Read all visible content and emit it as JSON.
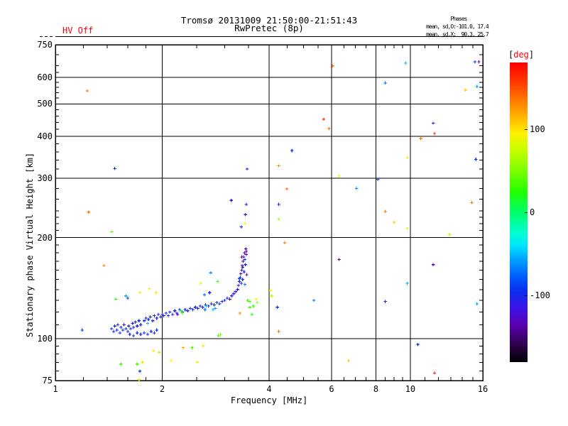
{
  "header": {
    "hv_status": "HV Off",
    "hv_color": "#ff0000",
    "title": "Tromsø 20131009 21:50:00-21:51:43",
    "subtitle": "RwPretec (8p)",
    "phases_label": "Phases",
    "phases_mean_o": "mean, sd,O:-101.0, 17.4",
    "phases_mean_x": "mean, sd,X:  90.3, 25.7"
  },
  "chart_data": {
    "type": "scatter",
    "title": "Tromsø 20131009 21:50:00-21:51:43",
    "subtitle": "RwPretec (8p)",
    "xlabel": "Frequency [MHz]",
    "ylabel": "Stationary phase Virtual Height [km]",
    "x_scale": "log",
    "y_scale": "log",
    "xlim": [
      1,
      16
    ],
    "ylim": [
      75,
      750
    ],
    "grid": true,
    "x_major_ticks": [
      1,
      2,
      4,
      6,
      8,
      10,
      16
    ],
    "x_minor_ticks": [
      1.2,
      1.4,
      1.6,
      1.8,
      2.5,
      3,
      3.5,
      4.5,
      5,
      5.5,
      6.5,
      7,
      7.5,
      8.5,
      9,
      9.5,
      11,
      12,
      13,
      14,
      15
    ],
    "y_major_ticks": [
      75,
      100,
      200,
      300,
      400,
      500,
      600,
      750
    ],
    "y_minor_ticks": [
      80,
      85,
      90,
      95,
      110,
      120,
      130,
      140,
      150,
      160,
      170,
      180,
      190,
      210,
      220,
      230,
      240,
      260,
      280,
      320,
      340,
      360,
      380,
      420,
      440,
      460,
      480,
      520,
      540,
      560,
      580,
      620,
      650,
      700
    ],
    "x_gridlines": [
      2,
      4,
      6,
      8,
      10
    ],
    "y_gridlines": [
      100,
      200,
      300,
      400,
      500,
      600
    ],
    "colorbar": {
      "label_open": "[",
      "label": "deg",
      "label_close": "]",
      "label_color": "#ff0000",
      "ticks": [
        100,
        0,
        -100
      ],
      "range": [
        -180,
        180
      ],
      "stops": [
        [
          -180,
          "#000000"
        ],
        [
          -155,
          "#38005c"
        ],
        [
          -135,
          "#5a00b4"
        ],
        [
          -115,
          "#3c14e6"
        ],
        [
          -95,
          "#0b2cf0"
        ],
        [
          -75,
          "#0064ff"
        ],
        [
          -55,
          "#00a8ff"
        ],
        [
          -40,
          "#00e4ff"
        ],
        [
          -25,
          "#00ffd2"
        ],
        [
          0,
          "#00ff69"
        ],
        [
          25,
          "#23ff00"
        ],
        [
          50,
          "#7dff00"
        ],
        [
          75,
          "#c8ff00"
        ],
        [
          95,
          "#fff000"
        ],
        [
          115,
          "#ffb400"
        ],
        [
          135,
          "#ff7800"
        ],
        [
          155,
          "#ff3c00"
        ],
        [
          180,
          "#ff0000"
        ]
      ]
    },
    "series_note": "points are [frequency_MHz, virtual_height_km, phase_deg]",
    "points": [
      [
        1.44,
        107,
        -100
      ],
      [
        1.46,
        105,
        -95
      ],
      [
        1.47,
        109,
        -105
      ],
      [
        1.49,
        106,
        -100
      ],
      [
        1.5,
        110,
        -98
      ],
      [
        1.52,
        104,
        -102
      ],
      [
        1.53,
        108,
        -95
      ],
      [
        1.55,
        106,
        -100
      ],
      [
        1.56,
        110,
        -108
      ],
      [
        1.58,
        107,
        -100
      ],
      [
        1.6,
        105,
        -95
      ],
      [
        1.61,
        109,
        -100
      ],
      [
        1.63,
        107,
        -103
      ],
      [
        1.65,
        111,
        -97
      ],
      [
        1.66,
        108,
        -100
      ],
      [
        1.68,
        112,
        -105
      ],
      [
        1.7,
        109,
        -100
      ],
      [
        1.72,
        113,
        -98
      ],
      [
        1.74,
        110,
        -100
      ],
      [
        1.62,
        103,
        -100
      ],
      [
        1.66,
        102,
        -98
      ],
      [
        1.7,
        104,
        -102
      ],
      [
        1.74,
        103,
        -100
      ],
      [
        1.78,
        104,
        -95
      ],
      [
        1.82,
        103,
        -100
      ],
      [
        1.86,
        105,
        -98
      ],
      [
        1.9,
        104,
        -100
      ],
      [
        1.93,
        106,
        -95
      ],
      [
        1.78,
        113,
        -100
      ],
      [
        1.8,
        115,
        -102
      ],
      [
        1.83,
        114,
        -98
      ],
      [
        1.85,
        116,
        -100
      ],
      [
        1.88,
        113,
        -95
      ],
      [
        1.9,
        117,
        -100
      ],
      [
        1.93,
        115,
        -105
      ],
      [
        1.95,
        118,
        -100
      ],
      [
        1.98,
        116,
        -98
      ],
      [
        2.0,
        118,
        -100
      ],
      [
        2.02,
        117,
        -102
      ],
      [
        1.82,
        111,
        -55
      ],
      [
        2.05,
        119,
        -100
      ],
      [
        2.08,
        117,
        -98
      ],
      [
        2.1,
        120,
        -100
      ],
      [
        2.14,
        118,
        -103
      ],
      [
        2.17,
        121,
        -100
      ],
      [
        2.2,
        119,
        -95
      ],
      [
        2.24,
        122,
        -100
      ],
      [
        2.28,
        120,
        -100
      ],
      [
        2.32,
        122,
        -98
      ],
      [
        2.36,
        121,
        -100
      ],
      [
        2.4,
        123,
        -102
      ],
      [
        2.44,
        122,
        -100
      ],
      [
        2.48,
        124,
        -100
      ],
      [
        2.26,
        121,
        25
      ],
      [
        2.21,
        118,
        -135
      ],
      [
        2.28,
        119,
        30
      ],
      [
        2.52,
        123,
        -100
      ],
      [
        2.56,
        125,
        -98
      ],
      [
        2.6,
        124,
        -100
      ],
      [
        2.65,
        126,
        -102
      ],
      [
        2.7,
        125,
        -100
      ],
      [
        2.75,
        127,
        -98
      ],
      [
        2.8,
        126,
        -100
      ],
      [
        2.85,
        128,
        -95
      ],
      [
        2.9,
        127,
        -100
      ],
      [
        2.95,
        129,
        -100
      ],
      [
        2.78,
        122,
        -50
      ],
      [
        2.66,
        125,
        -45
      ],
      [
        2.64,
        122,
        -70
      ],
      [
        2.82,
        123,
        -60
      ],
      [
        2.63,
        135,
        -65
      ],
      [
        2.72,
        137,
        -100
      ],
      [
        2.74,
        157,
        -60
      ],
      [
        3.0,
        130,
        -100
      ],
      [
        3.05,
        132,
        -98
      ],
      [
        3.1,
        131,
        -120
      ],
      [
        3.14,
        134,
        -100
      ],
      [
        3.18,
        136,
        -120
      ],
      [
        3.22,
        138,
        -100
      ],
      [
        3.26,
        140,
        -125
      ],
      [
        3.28,
        144,
        -110
      ],
      [
        3.3,
        148,
        -100
      ],
      [
        3.32,
        152,
        -120
      ],
      [
        3.33,
        156,
        -135
      ],
      [
        3.35,
        160,
        -100
      ],
      [
        3.36,
        165,
        -130
      ],
      [
        3.38,
        170,
        -140
      ],
      [
        3.39,
        175,
        -120
      ],
      [
        3.41,
        180,
        -135
      ],
      [
        3.42,
        172,
        -100
      ],
      [
        3.43,
        166,
        -95
      ],
      [
        3.4,
        158,
        -105
      ],
      [
        3.37,
        150,
        -100
      ],
      [
        3.34,
        146,
        -115
      ],
      [
        3.44,
        185,
        -130
      ],
      [
        3.45,
        178,
        -140
      ],
      [
        3.3,
        151,
        -80
      ],
      [
        3.42,
        145,
        -70
      ],
      [
        3.13,
        258,
        -100
      ],
      [
        3.45,
        251,
        -110
      ],
      [
        3.43,
        234,
        -120
      ],
      [
        3.34,
        215,
        -100
      ],
      [
        3.43,
        220,
        95
      ],
      [
        3.45,
        182,
        -135
      ],
      [
        3.37,
        163,
        -120
      ],
      [
        3.46,
        155,
        -130
      ],
      [
        3.47,
        320,
        -115
      ],
      [
        3.35,
        175,
        -140
      ],
      [
        1.58,
        134,
        -55
      ],
      [
        1.6,
        132,
        -90
      ],
      [
        1.48,
        131,
        25
      ],
      [
        1.84,
        141,
        95
      ],
      [
        1.92,
        137,
        90
      ],
      [
        1.73,
        137,
        95
      ],
      [
        2.57,
        146,
        90
      ],
      [
        2.87,
        148,
        35
      ],
      [
        3.53,
        129,
        30
      ],
      [
        3.68,
        131,
        85
      ],
      [
        3.61,
        125,
        30
      ],
      [
        3.58,
        118,
        25
      ],
      [
        3.31,
        119,
        130
      ],
      [
        3.48,
        130,
        35
      ],
      [
        3.7,
        128,
        60
      ],
      [
        3.53,
        124,
        30
      ],
      [
        1.19,
        106,
        -75
      ],
      [
        1.23,
        547,
        135
      ],
      [
        1.47,
        321,
        -100
      ],
      [
        1.24,
        238,
        130
      ],
      [
        1.44,
        208,
        40
      ],
      [
        1.37,
        165,
        125
      ],
      [
        4.43,
        193,
        135
      ],
      [
        4.64,
        363,
        -95
      ],
      [
        4.26,
        327,
        130
      ],
      [
        6.03,
        649,
        150
      ],
      [
        9.7,
        661,
        -50
      ],
      [
        15.2,
        667,
        -95
      ],
      [
        15.6,
        667,
        -130
      ],
      [
        8.5,
        577,
        -70
      ],
      [
        15.4,
        563,
        -50
      ],
      [
        14.3,
        550,
        105
      ],
      [
        5.7,
        450,
        170
      ],
      [
        5.9,
        422,
        140
      ],
      [
        11.6,
        438,
        -115
      ],
      [
        11.7,
        408,
        155
      ],
      [
        10.7,
        394,
        135
      ],
      [
        9.8,
        346,
        90
      ],
      [
        15.3,
        342,
        -95
      ],
      [
        6.3,
        305,
        90
      ],
      [
        8.1,
        298,
        -90
      ],
      [
        4.49,
        279,
        140
      ],
      [
        4.26,
        251,
        -95
      ],
      [
        4.26,
        227,
        60
      ],
      [
        7.05,
        280,
        -65
      ],
      [
        8.5,
        239,
        135
      ],
      [
        9.0,
        222,
        110
      ],
      [
        9.8,
        213,
        85
      ],
      [
        14.9,
        254,
        140
      ],
      [
        12.9,
        204,
        70
      ],
      [
        6.3,
        172,
        -130
      ],
      [
        11.6,
        166,
        -140
      ],
      [
        9.8,
        146,
        -55
      ],
      [
        4.04,
        139,
        90
      ],
      [
        4.07,
        134,
        70
      ],
      [
        5.35,
        130,
        -70
      ],
      [
        8.5,
        129,
        -110
      ],
      [
        4.22,
        124,
        -95
      ],
      [
        15.4,
        127,
        -50
      ],
      [
        4.26,
        105,
        140
      ],
      [
        10.5,
        96,
        -95
      ],
      [
        6.7,
        86,
        110
      ],
      [
        11.7,
        79,
        165
      ],
      [
        1.89,
        92,
        90
      ],
      [
        1.96,
        91,
        70
      ],
      [
        1.53,
        84,
        30
      ],
      [
        1.7,
        84,
        35
      ],
      [
        1.76,
        85,
        90
      ],
      [
        1.73,
        80,
        -90
      ],
      [
        1.72,
        75.5,
        90
      ],
      [
        2.12,
        86,
        95
      ],
      [
        2.29,
        94,
        120
      ],
      [
        2.43,
        94,
        35
      ],
      [
        2.61,
        95,
        90
      ],
      [
        2.88,
        102,
        30
      ],
      [
        2.92,
        103,
        45
      ],
      [
        2.51,
        85,
        90
      ]
    ]
  }
}
